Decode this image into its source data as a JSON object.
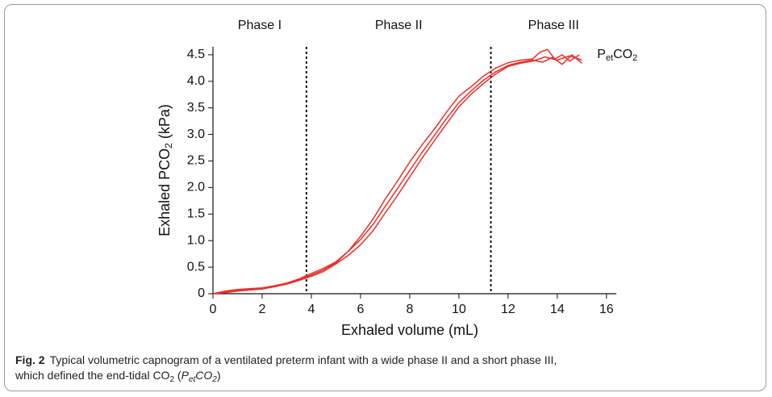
{
  "chart_data": {
    "type": "line",
    "color": "#e8302a",
    "xlabel": "Exhaled volume (mL)",
    "ylabel_parts": [
      "Exhaled PCO",
      "2",
      " (kPa)"
    ],
    "annotation_parts": [
      "P",
      "et",
      "CO",
      "2"
    ],
    "phase_labels": [
      "Phase I",
      "Phase II",
      "Phase III"
    ],
    "dividers": [
      3.8,
      11.3
    ],
    "xlim": [
      0,
      16.4
    ],
    "ylim": [
      0,
      4.65
    ],
    "xticks": [
      0,
      2,
      4,
      6,
      8,
      10,
      12,
      14,
      16
    ],
    "yticks": [
      0,
      0.5,
      {
        "value": 1,
        "label": "1.0"
      },
      1.5,
      {
        "value": 2,
        "label": "2.0"
      },
      2.5,
      {
        "value": 3,
        "label": "3.0"
      },
      3.5,
      {
        "value": 4,
        "label": "4.0"
      },
      4.5
    ],
    "series": [
      {
        "x": [
          0,
          0.5,
          1,
          2,
          2.5,
          3,
          3.5,
          4,
          4.5,
          5,
          5.5,
          6,
          6.5,
          7,
          7.5,
          8,
          8.5,
          9,
          9.5,
          10,
          10.5,
          11,
          11.5,
          12,
          12.5,
          13,
          13.3,
          13.6,
          13.9,
          14.2,
          14.5,
          14.9
        ],
        "values": [
          0,
          0.05,
          0.08,
          0.11,
          0.15,
          0.2,
          0.27,
          0.35,
          0.45,
          0.58,
          0.8,
          1.08,
          1.4,
          1.78,
          2.12,
          2.48,
          2.8,
          3.1,
          3.42,
          3.72,
          3.9,
          4.1,
          4.25,
          4.35,
          4.4,
          4.42,
          4.55,
          4.6,
          4.42,
          4.5,
          4.38,
          4.5
        ]
      },
      {
        "x": [
          0,
          0.5,
          1,
          2,
          2.5,
          3,
          3.5,
          4,
          4.5,
          5,
          5.5,
          6,
          6.5,
          7,
          7.5,
          8,
          8.5,
          9,
          9.5,
          10,
          10.5,
          11,
          11.5,
          12,
          12.5,
          13,
          13.4,
          13.8,
          14.2,
          14.6,
          15
        ],
        "values": [
          0,
          0.03,
          0.06,
          0.1,
          0.14,
          0.2,
          0.28,
          0.38,
          0.48,
          0.6,
          0.8,
          1.02,
          1.3,
          1.64,
          1.98,
          2.32,
          2.66,
          2.98,
          3.3,
          3.6,
          3.82,
          4.02,
          4.18,
          4.3,
          4.36,
          4.4,
          4.36,
          4.45,
          4.32,
          4.5,
          4.34
        ]
      },
      {
        "x": [
          0,
          0.5,
          1,
          2,
          2.5,
          3,
          3.5,
          4,
          4.5,
          5,
          5.5,
          6,
          6.5,
          7,
          7.5,
          8,
          8.5,
          9,
          9.5,
          10,
          10.5,
          11,
          11.5,
          12,
          12.5,
          13,
          13.5,
          14,
          14.5,
          15
        ],
        "values": [
          0,
          0.02,
          0.05,
          0.09,
          0.13,
          0.18,
          0.25,
          0.33,
          0.42,
          0.56,
          0.72,
          0.92,
          1.18,
          1.52,
          1.85,
          2.2,
          2.55,
          2.88,
          3.2,
          3.52,
          3.76,
          3.96,
          4.14,
          4.28,
          4.34,
          4.38,
          4.46,
          4.4,
          4.48,
          4.4
        ]
      }
    ]
  },
  "caption": {
    "lines": [
      [
        {
          "text": "Fig. 2",
          "style": "bold"
        },
        {
          "text": "Typical volumetric capnogram of a ventilated preterm infant with a wide phase II and a short phase III,",
          "style": "plain"
        }
      ],
      [
        {
          "text": "which defined the end-tidal CO",
          "style": "plain"
        },
        {
          "text": "2",
          "style": "sub"
        },
        {
          "text": " (",
          "style": "plain"
        },
        {
          "text": "P",
          "style": "italic"
        },
        {
          "text": "et",
          "style": "sub-italic"
        },
        {
          "text": "CO",
          "style": "italic"
        },
        {
          "text": "2",
          "style": "sub-italic"
        },
        {
          "text": ")",
          "style": "plain"
        }
      ]
    ]
  }
}
